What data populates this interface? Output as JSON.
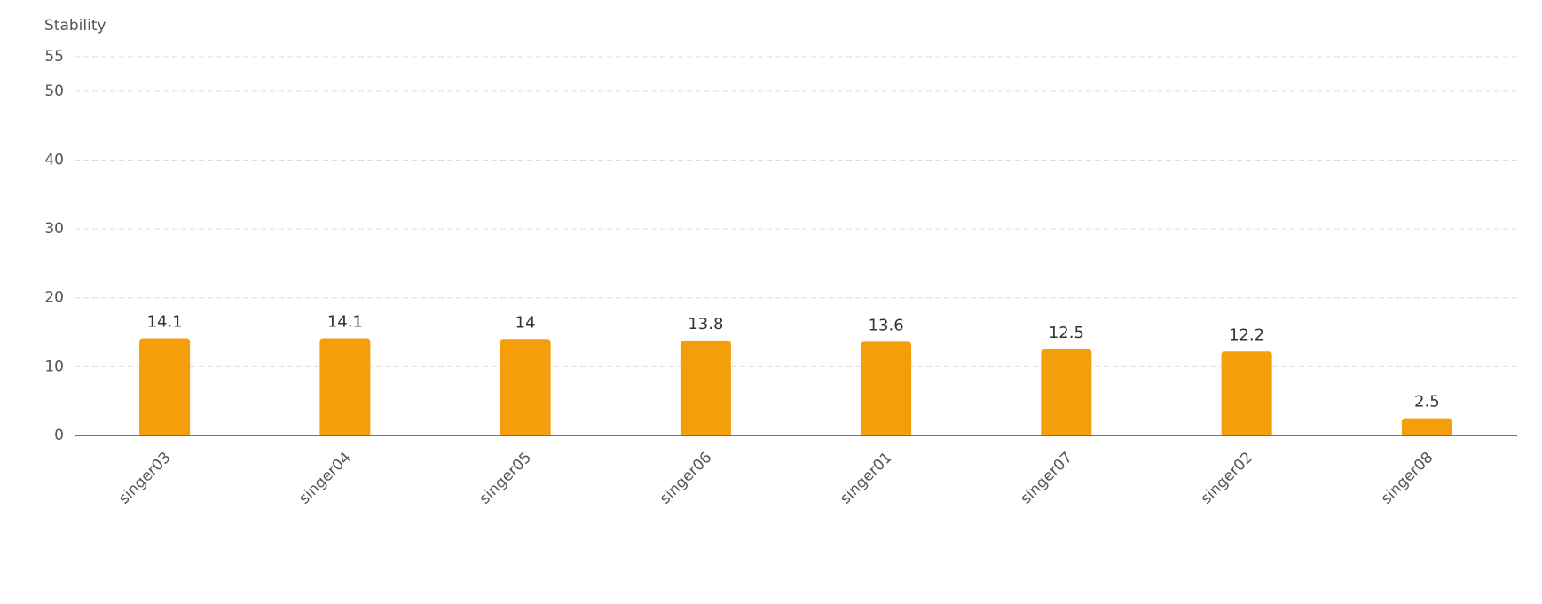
{
  "chart_data": {
    "type": "bar",
    "y_label": "Stability",
    "categories": [
      "singer03",
      "singer04",
      "singer05",
      "singer06",
      "singer01",
      "singer07",
      "singer02",
      "singer08"
    ],
    "values": [
      14.1,
      14.1,
      14,
      13.8,
      13.6,
      12.5,
      12.2,
      2.5
    ],
    "color": "#f59e0b",
    "ylim": [
      0,
      55
    ],
    "yticks": [
      0,
      10,
      20,
      30,
      40,
      50,
      55
    ],
    "grid": true
  }
}
